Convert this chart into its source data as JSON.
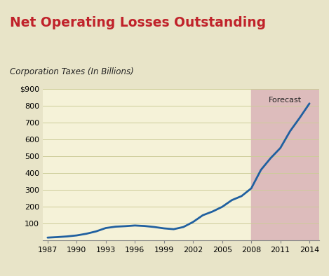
{
  "title": "Net Operating Losses Outstanding",
  "subtitle": "Corporation Taxes (In Billions)",
  "title_color": "#c0222a",
  "header_bg_color": "#f5f5f0",
  "outer_bg_color": "#e8e4c8",
  "forecast_bg_color": "#ddbcbc",
  "plot_bg_color": "#f5f2d8",
  "line_color": "#2060a0",
  "line_width": 2.0,
  "forecast_start_year": 2008,
  "forecast_label": "Forecast",
  "xlim": [
    1986.5,
    2015.0
  ],
  "ylim": [
    0,
    900
  ],
  "yticks": [
    0,
    100,
    200,
    300,
    400,
    500,
    600,
    700,
    800,
    900
  ],
  "ytick_labels": [
    "",
    "100",
    "200",
    "300",
    "400",
    "500",
    "600",
    "700",
    "800",
    "$900"
  ],
  "xticks": [
    1987,
    1990,
    1993,
    1996,
    1999,
    2002,
    2005,
    2008,
    2011,
    2014
  ],
  "years": [
    1987,
    1988,
    1989,
    1990,
    1991,
    1992,
    1993,
    1994,
    1995,
    1996,
    1997,
    1998,
    1999,
    2000,
    2001,
    2002,
    2003,
    2004,
    2005,
    2006,
    2007,
    2008,
    2009,
    2010,
    2011,
    2012,
    2013,
    2014
  ],
  "values": [
    15,
    18,
    22,
    28,
    38,
    52,
    72,
    80,
    83,
    87,
    84,
    78,
    70,
    65,
    78,
    108,
    148,
    170,
    198,
    238,
    262,
    308,
    418,
    488,
    548,
    648,
    728,
    813
  ],
  "separator_color": "#111111",
  "grid_color": "#cccc99",
  "spine_color": "#888888"
}
